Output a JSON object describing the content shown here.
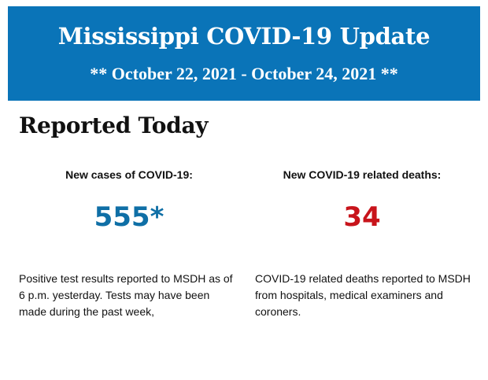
{
  "banner": {
    "title": "Mississippi COVID-19 Update",
    "dates": "** October 22, 2021 - October 24, 2021 **",
    "background_color": "#0a74b8"
  },
  "section": {
    "title": "Reported Today"
  },
  "cases": {
    "label": "New cases of COVID-19:",
    "value": "555*",
    "color": "#0f6fa6",
    "description": "Positive test results reported to MSDH as of 6 p.m. yesterday. Tests may have been made during the past week,"
  },
  "deaths": {
    "label": "New COVID-19 related deaths:",
    "value": "34",
    "color": "#c8141b",
    "description": "COVID-19 related deaths reported to MSDH from hospitals, medical examiners and coroners."
  }
}
